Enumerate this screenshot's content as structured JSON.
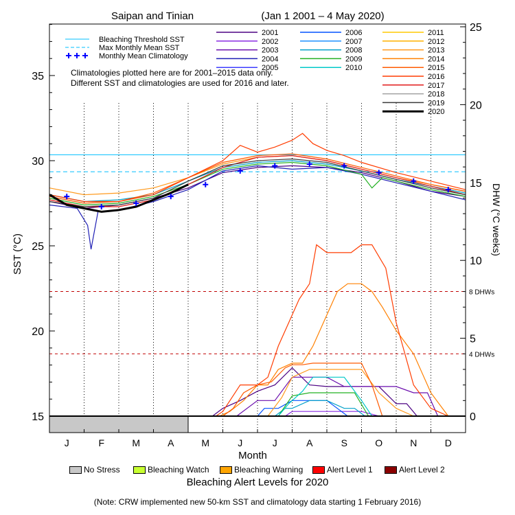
{
  "chart_data": {
    "type": "line",
    "title": "Saipan and Tinian",
    "date_range": "(Jan 1 2001 – 4 May 2020)",
    "xlabel": "Month",
    "ylabel_left": "SST (°C)",
    "ylabel_right": "DHW (°C weeks)",
    "months": [
      "J",
      "F",
      "M",
      "A",
      "M",
      "J",
      "J",
      "A",
      "S",
      "O",
      "N",
      "D"
    ],
    "ylim_left": [
      15,
      39
    ],
    "yticks_left": [
      15,
      20,
      25,
      30,
      35
    ],
    "ylim_right": [
      0,
      25
    ],
    "yticks_right": [
      0,
      5,
      10,
      15,
      20,
      25
    ],
    "bleaching_threshold_sst": 30.35,
    "max_monthly_mean_sst": 29.35,
    "dhw_reference_lines": [
      {
        "label": "4 DHWs",
        "value": 4
      },
      {
        "label": "8 DHWs",
        "value": 8
      }
    ],
    "ref_legend": [
      {
        "label": "Bleaching Threshold SST",
        "color": "#00bfff",
        "style": "solid"
      },
      {
        "label": "Max Monthly Mean SST",
        "color": "#00bfff",
        "style": "dashed"
      },
      {
        "label": "Monthly Mean Climatology",
        "color": "#0000ff",
        "style": "plus"
      }
    ],
    "note_lines": [
      "Climatologies plotted here are for 2001–2015 data only.",
      "Different SST and climatologies are used for 2016 and later."
    ],
    "climatology": {
      "x": [
        0.5,
        1.5,
        2.5,
        3.5,
        4.5,
        5.5,
        6.5,
        7.5,
        8.5,
        9.5,
        10.5,
        11.5
      ],
      "values": [
        27.9,
        27.3,
        27.5,
        27.9,
        28.6,
        29.4,
        29.7,
        29.8,
        29.7,
        29.3,
        28.8,
        28.3
      ]
    },
    "years": [
      {
        "name": "2001",
        "color": "#4b0082"
      },
      {
        "name": "2002",
        "color": "#8a2be2"
      },
      {
        "name": "2003",
        "color": "#6a0dad"
      },
      {
        "name": "2004",
        "color": "#1e1eb4"
      },
      {
        "name": "2005",
        "color": "#3c3cff"
      },
      {
        "name": "2006",
        "color": "#0050ff"
      },
      {
        "name": "2007",
        "color": "#1e90ff"
      },
      {
        "name": "2008",
        "color": "#00a0c8"
      },
      {
        "name": "2009",
        "color": "#22b022"
      },
      {
        "name": "2010",
        "color": "#00c8c8"
      },
      {
        "name": "2011",
        "color": "#ffc800"
      },
      {
        "name": "2012",
        "color": "#ffb000"
      },
      {
        "name": "2013",
        "color": "#ff9a1e"
      },
      {
        "name": "2014",
        "color": "#ff8000"
      },
      {
        "name": "2015",
        "color": "#ff5a00"
      },
      {
        "name": "2016",
        "color": "#ff3c00"
      },
      {
        "name": "2017",
        "color": "#e11a1a"
      },
      {
        "name": "2018",
        "color": "#a0a0a0"
      },
      {
        "name": "2019",
        "color": "#3a3a3a"
      },
      {
        "name": "2020",
        "color": "#000000"
      }
    ],
    "sst_series": [
      {
        "name": "2001",
        "x": [
          0,
          1,
          2,
          3,
          4,
          5,
          6,
          7,
          8,
          9,
          10,
          11,
          12
        ],
        "y": [
          27.6,
          27.2,
          27.4,
          27.8,
          28.4,
          29.3,
          29.6,
          29.7,
          29.6,
          29.3,
          28.8,
          28.2,
          27.9
        ]
      },
      {
        "name": "2004",
        "x": [
          0,
          0.8,
          1.1,
          1.2,
          1.4,
          2,
          3,
          4,
          5,
          6,
          7,
          8,
          9,
          10,
          11,
          12
        ],
        "y": [
          27.4,
          27.2,
          26.2,
          24.8,
          27.0,
          27.1,
          27.6,
          28.3,
          29.4,
          29.7,
          29.5,
          29.6,
          29.2,
          28.7,
          28.2,
          27.7
        ]
      },
      {
        "name": "2008",
        "x": [
          0,
          1,
          2,
          3,
          4,
          5,
          6,
          7,
          8,
          9,
          10,
          11,
          12
        ],
        "y": [
          28.0,
          27.6,
          27.7,
          28.0,
          28.8,
          29.6,
          29.9,
          30.0,
          29.8,
          29.4,
          28.9,
          28.5,
          28.1
        ]
      },
      {
        "name": "2009",
        "x": [
          0,
          1,
          2,
          3,
          4,
          5,
          6,
          7,
          8,
          9,
          9.3,
          9.6,
          10,
          11,
          12
        ],
        "y": [
          27.8,
          27.4,
          27.5,
          27.9,
          28.6,
          29.5,
          29.8,
          29.9,
          29.7,
          29.2,
          28.4,
          29.0,
          28.8,
          28.3,
          27.9
        ]
      },
      {
        "name": "2013",
        "x": [
          0,
          1,
          2,
          3,
          4,
          5,
          6,
          7,
          8,
          9,
          10,
          11,
          12
        ],
        "y": [
          28.4,
          28.0,
          28.1,
          28.4,
          29.0,
          29.8,
          30.2,
          30.3,
          30.0,
          29.5,
          29.0,
          28.6,
          28.2
        ]
      },
      {
        "name": "2015",
        "x": [
          0,
          1,
          2,
          3,
          4,
          5,
          6,
          7,
          8,
          9,
          10,
          11,
          12
        ],
        "y": [
          27.9,
          27.5,
          27.6,
          28.1,
          29.0,
          29.9,
          30.3,
          30.4,
          30.1,
          29.6,
          29.1,
          28.6,
          28.2
        ]
      },
      {
        "name": "2016",
        "x": [
          0,
          1,
          2,
          3,
          4,
          5,
          5.5,
          6,
          6.5,
          7,
          7.3,
          7.6,
          8,
          8.5,
          9,
          10,
          11,
          12
        ],
        "y": [
          28.0,
          27.6,
          27.6,
          28.0,
          29.0,
          30.0,
          30.9,
          30.5,
          30.8,
          31.2,
          31.6,
          31.0,
          30.6,
          30.3,
          29.9,
          29.3,
          28.8,
          28.3
        ]
      },
      {
        "name": "2017",
        "x": [
          0,
          1,
          2,
          3,
          4,
          5,
          6,
          7,
          8,
          9,
          10,
          11,
          12
        ],
        "y": [
          27.7,
          27.3,
          27.3,
          27.7,
          28.6,
          29.6,
          30.2,
          30.3,
          30.0,
          29.5,
          29.0,
          28.5,
          28.0
        ]
      },
      {
        "name": "2019",
        "x": [
          0,
          1,
          2,
          3,
          4,
          5,
          6,
          7,
          8,
          9,
          10,
          11,
          12
        ],
        "y": [
          27.6,
          27.3,
          27.4,
          27.8,
          28.8,
          29.7,
          30.0,
          30.1,
          29.9,
          29.4,
          28.9,
          28.4,
          28.0
        ]
      },
      {
        "name": "2020",
        "x": [
          0,
          0.5,
          1,
          1.5,
          2,
          2.5,
          3,
          3.5,
          4
        ],
        "y": [
          28.0,
          27.4,
          27.2,
          27.0,
          27.1,
          27.3,
          27.7,
          28.1,
          28.6
        ]
      }
    ],
    "dhw_series": [
      {
        "name": "2001",
        "x": [
          4.7,
          5.0,
          5.5,
          6.0,
          6.5,
          7.0,
          7.5,
          8.0,
          8.5,
          9.0,
          9.5,
          10.0,
          10.3,
          10.6,
          11.0
        ],
        "y": [
          0,
          0.5,
          1.0,
          1.6,
          2.0,
          3.1,
          2.0,
          1.9,
          1.9,
          1.9,
          1.9,
          0.8,
          0.8,
          0,
          0
        ]
      },
      {
        "name": "2002",
        "x": [
          6.8,
          7.0,
          7.5,
          8.0,
          8.5,
          9.0,
          9.5,
          10.0,
          10.3,
          10.6
        ],
        "y": [
          0,
          0.3,
          0.3,
          0.3,
          0.3,
          0.3,
          0,
          0,
          0,
          0
        ]
      },
      {
        "name": "2003",
        "x": [
          5.4,
          6.0,
          6.5,
          7.0,
          7.5,
          8.0,
          8.5,
          9.0,
          9.5,
          10.0,
          10.5,
          10.9,
          11.2,
          11.4
        ],
        "y": [
          0,
          1.0,
          1.0,
          2.5,
          2.5,
          2.5,
          1.9,
          1.9,
          1.9,
          1.9,
          1.5,
          1.5,
          0,
          0
        ]
      },
      {
        "name": "2006",
        "x": [
          6.0,
          6.2,
          6.6,
          7.0,
          7.5,
          8.0,
          8.3,
          8.6
        ],
        "y": [
          0,
          0.5,
          0.5,
          1.0,
          1.0,
          1.0,
          0.5,
          0
        ]
      },
      {
        "name": "2008",
        "x": [
          6.5,
          6.8,
          7.0,
          7.5,
          8.0,
          8.5,
          8.8,
          9.1
        ],
        "y": [
          0,
          0.5,
          0.5,
          1.0,
          1.0,
          0.5,
          0.5,
          0
        ]
      },
      {
        "name": "2009",
        "x": [
          6.6,
          7.0,
          7.5,
          8.0,
          8.5,
          8.8,
          9.2
        ],
        "y": [
          0,
          1.3,
          1.5,
          1.5,
          1.5,
          1.5,
          0
        ]
      },
      {
        "name": "2010",
        "x": [
          6.6,
          6.9,
          7.3,
          7.6,
          8.0,
          8.5,
          9.0,
          9.3
        ],
        "y": [
          0,
          0.8,
          1.6,
          2.5,
          2.5,
          2.5,
          1.0,
          0
        ]
      },
      {
        "name": "2013",
        "x": [
          6.3,
          6.7,
          7.0,
          7.5,
          8.0,
          8.5,
          9.0,
          9.5,
          10.0,
          10.5
        ],
        "y": [
          0,
          1.2,
          2.5,
          3.0,
          3.0,
          3.0,
          3.0,
          1.5,
          0.5,
          0
        ]
      },
      {
        "name": "2014",
        "x": [
          4.9,
          5.2,
          5.6,
          6.0,
          6.3,
          6.6,
          7.0,
          7.3,
          7.6,
          8.0,
          8.3,
          8.6,
          9.0,
          9.3,
          9.6,
          10.0,
          10.5,
          11.0,
          11.5
        ],
        "y": [
          0,
          0.3,
          1.0,
          2.0,
          2.0,
          3.0,
          3.4,
          3.4,
          4.5,
          6.5,
          8.0,
          8.5,
          8.5,
          8.0,
          7.0,
          5.5,
          4.0,
          1.5,
          0
        ]
      },
      {
        "name": "2015",
        "x": [
          5.0,
          5.3,
          5.6,
          6.0,
          6.4,
          6.8,
          7.0,
          7.3,
          7.6,
          8.0,
          8.3,
          8.6,
          9.0,
          9.3,
          9.6
        ],
        "y": [
          0,
          0.5,
          1.5,
          2.0,
          2.2,
          3.1,
          3.3,
          3.3,
          3.4,
          3.4,
          3.4,
          3.4,
          3.4,
          2.0,
          0
        ]
      },
      {
        "name": "2016",
        "x": [
          4.8,
          5.0,
          5.5,
          6.0,
          6.3,
          6.6,
          6.9,
          7.2,
          7.5,
          7.7,
          8.0,
          8.3,
          8.7,
          9.0,
          9.3,
          9.7,
          10.0,
          10.5,
          11.0,
          11.5
        ],
        "y": [
          0,
          0.3,
          2.0,
          2.0,
          2.5,
          4.5,
          6.0,
          7.5,
          8.5,
          11.0,
          10.5,
          10.5,
          10.5,
          11.0,
          11.0,
          9.5,
          6.0,
          2.0,
          0.5,
          0
        ]
      },
      {
        "name": "2020",
        "x": [
          0,
          4.0
        ],
        "y": [
          0,
          0
        ]
      }
    ],
    "alert_legend": [
      {
        "label": "No Stress",
        "color": "#c8c8c8"
      },
      {
        "label": "Bleaching Watch",
        "color": "#c8ff32"
      },
      {
        "label": "Bleaching Warning",
        "color": "#ffa500"
      },
      {
        "label": "Alert Level 1",
        "color": "#ff0000"
      },
      {
        "label": "Alert Level 2",
        "color": "#8b0000"
      }
    ],
    "alert_title": "Bleaching Alert Levels for 2020",
    "alert_bar": {
      "months_start": 0,
      "months_end": 4,
      "level": "No Stress"
    }
  },
  "note": "(Note: CRW implemented new 50-km SST and climatology data starting 1 February 2016)"
}
